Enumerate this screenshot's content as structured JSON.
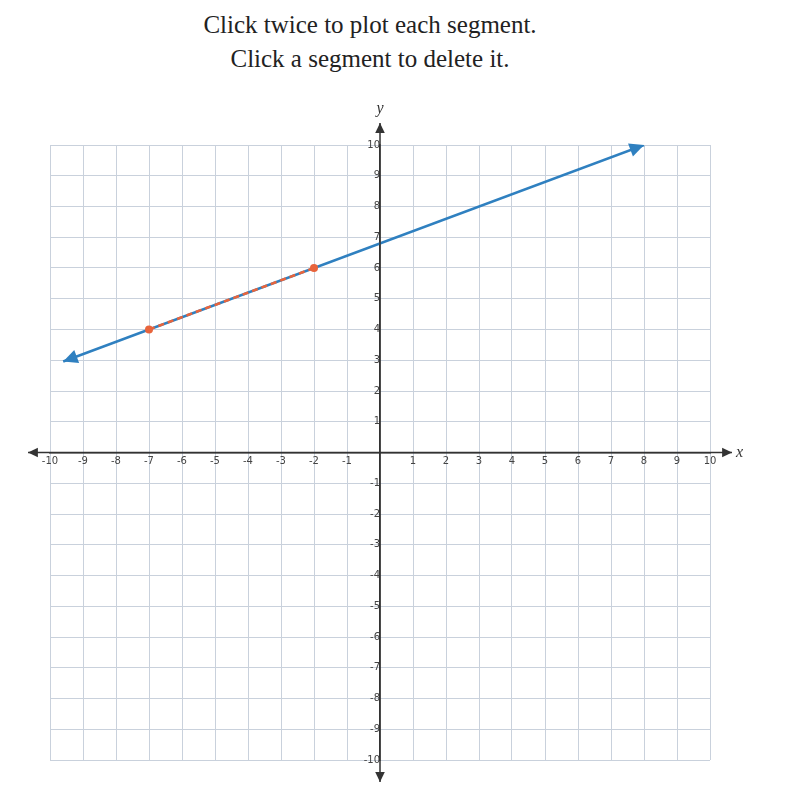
{
  "chart_data": {
    "type": "line",
    "title": "Click twice to plot each segment.",
    "subtitle": "Click a segment to delete it.",
    "x_label": "x",
    "y_label": "y",
    "xlim": [
      -10,
      10
    ],
    "ylim": [
      -10,
      10
    ],
    "xticks": [
      -10,
      -9,
      -8,
      -7,
      -6,
      -5,
      -4,
      -3,
      -2,
      -1,
      1,
      2,
      3,
      4,
      5,
      6,
      7,
      8,
      9,
      10
    ],
    "yticks": [
      -10,
      -9,
      -8,
      -7,
      -6,
      -5,
      -4,
      -3,
      -2,
      -1,
      1,
      2,
      3,
      4,
      5,
      6,
      7,
      8,
      9,
      10
    ],
    "grid": true,
    "series": [
      {
        "color": "#2f80c0",
        "x": [
          -9.6,
          8
        ],
        "values": [
          2.96,
          10
        ],
        "marker": "arrow",
        "line_style": "solid"
      },
      {
        "color": "#e8643c",
        "x": [
          -7,
          -2
        ],
        "values": [
          4,
          6
        ],
        "marker": "circle",
        "line_style": "dashed"
      }
    ]
  }
}
